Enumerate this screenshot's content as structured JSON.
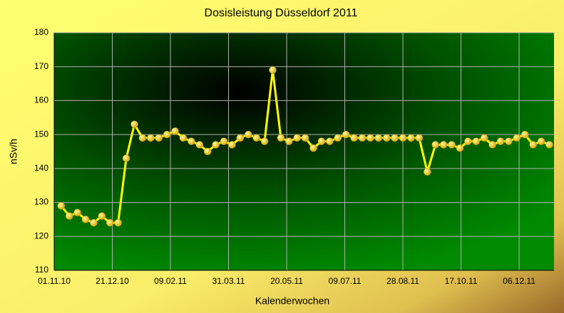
{
  "chart_data": {
    "type": "line",
    "title": "Dosisleistung Düsseldorf 2011",
    "x_label": "Kalenderwochen",
    "y_label": "nSv/h",
    "x": [
      "07.11.10",
      "14.11.10",
      "21.11.10",
      "28.11.10",
      "05.12.10",
      "12.12.10",
      "19.12.10",
      "26.12.10",
      "02.01.11",
      "09.01.11",
      "16.01.11",
      "23.01.11",
      "30.01.11",
      "06.02.11",
      "13.02.11",
      "20.02.11",
      "27.02.11",
      "06.03.11",
      "13.03.11",
      "20.03.11",
      "27.03.11",
      "03.04.11",
      "10.04.11",
      "17.04.11",
      "24.04.11",
      "01.05.11",
      "08.05.11",
      "15.05.11",
      "22.05.11",
      "29.05.11",
      "05.06.11",
      "12.06.11",
      "19.06.11",
      "26.06.11",
      "03.07.11",
      "10.07.11",
      "17.07.11",
      "24.07.11",
      "31.07.11",
      "07.08.11",
      "14.08.11",
      "21.08.11",
      "28.08.11",
      "04.09.11",
      "11.09.11",
      "18.09.11",
      "25.09.11",
      "02.10.11",
      "09.10.11",
      "16.10.11",
      "23.10.11",
      "30.10.11",
      "06.11.11",
      "13.11.11",
      "20.11.11",
      "27.11.11",
      "04.12.11",
      "11.12.11",
      "18.12.11",
      "25.12.11",
      "01.01.12"
    ],
    "series": [
      {
        "name": "Dosisleistung",
        "color": "#ffff00",
        "values": [
          129,
          126,
          127,
          125,
          124,
          126,
          124,
          124,
          143,
          153,
          149,
          149,
          149,
          150,
          151,
          149,
          148,
          147,
          145,
          147,
          148,
          147,
          149,
          150,
          149,
          148,
          169,
          149,
          148,
          149,
          149,
          146,
          148,
          148,
          149,
          150,
          149,
          149,
          149,
          149,
          149,
          149,
          149,
          149,
          149,
          139,
          147,
          147,
          147,
          146,
          148,
          148,
          149,
          147,
          148,
          148,
          149,
          150,
          147,
          148,
          147
        ]
      }
    ],
    "xlim": [
      "01.11.10",
      "05.01.12"
    ],
    "xticks": [
      "01.11.10",
      "21.12.10",
      "09.02.11",
      "31.03.11",
      "20.05.11",
      "09.07.11",
      "28.08.11",
      "17.10.11",
      "06.12.11"
    ],
    "ylim": [
      110,
      180
    ],
    "yticks": [
      110,
      120,
      130,
      140,
      150,
      160,
      170,
      180
    ],
    "grid": true
  }
}
